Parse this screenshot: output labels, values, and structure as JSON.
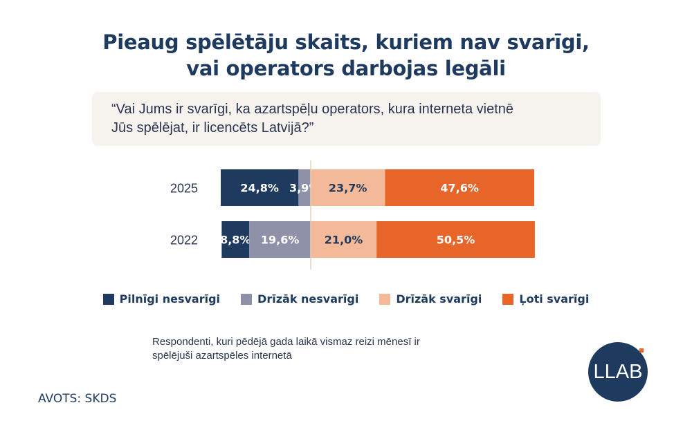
{
  "title_lines": [
    "Pieaug spēlētāju skaits, kuriem nav svarīgi,",
    "vai operators darbojas legāli"
  ],
  "question_lines": [
    "“Vai Jums ir svarīgi, ka azartspēļu operators, kura interneta vietnē",
    "Jūs spēlējat, ir licencēts Latvijā?”"
  ],
  "note": "Respondenti, kuri pēdējā gada laikā vismaz reizi mēnesī ir spēlējuši azartspēles internetā",
  "source": "AVOTS: SKDS",
  "logo": "LLAB",
  "chart_data": {
    "type": "bar",
    "orientation": "horizontal-diverging-stacked",
    "categories": [
      "2025",
      "2022"
    ],
    "series": [
      {
        "name": "Pilnīgi nesvarīgi",
        "color": "#1e3a5f",
        "values": [
          24.8,
          8.8
        ],
        "labels": [
          "24,8%",
          "8,8%"
        ],
        "side": "left"
      },
      {
        "name": "Drīzāk nesvarīgi",
        "color": "#8e91a8",
        "values": [
          3.9,
          19.6
        ],
        "labels": [
          "3,9%",
          "19,6%"
        ],
        "side": "left"
      },
      {
        "name": "Drīzāk svarīgi",
        "color": "#f4b998",
        "values": [
          23.7,
          21.0
        ],
        "labels": [
          "23,7%",
          "21,0%"
        ],
        "side": "right"
      },
      {
        "name": "Ļoti svarīgi",
        "color": "#e8652a",
        "values": [
          47.6,
          50.5
        ],
        "labels": [
          "47,6%",
          "50,5%"
        ],
        "side": "right"
      }
    ],
    "legend": "bottom"
  }
}
